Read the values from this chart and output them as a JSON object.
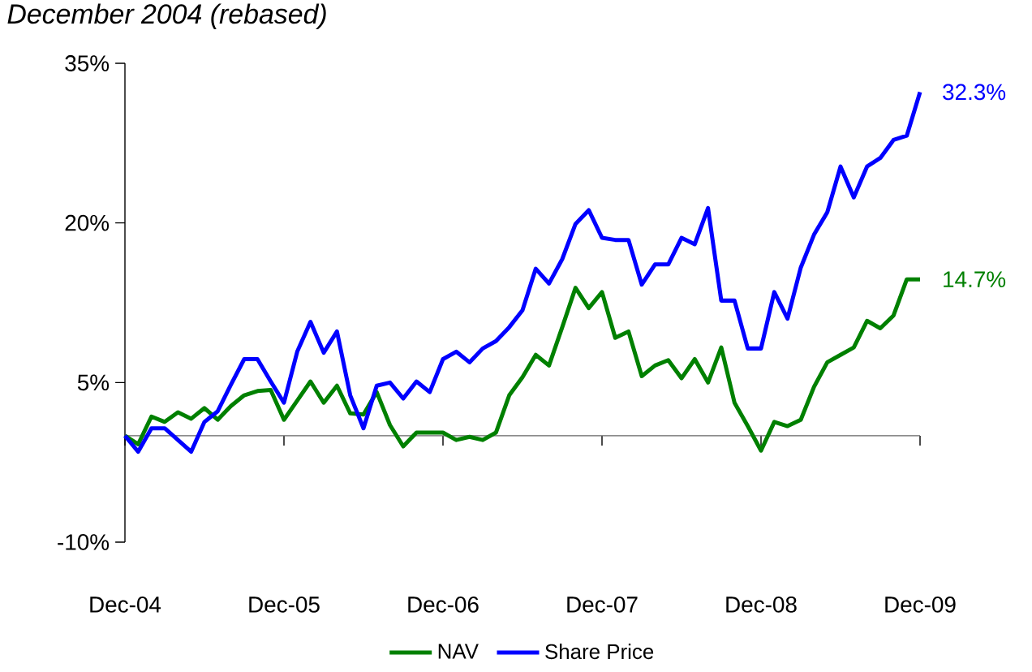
{
  "chart_data": {
    "type": "line",
    "title": "December 2004 (rebased)",
    "x": [
      "2004-12",
      "2005-01",
      "2005-02",
      "2005-03",
      "2005-04",
      "2005-05",
      "2005-06",
      "2005-07",
      "2005-08",
      "2005-09",
      "2005-10",
      "2005-11",
      "2005-12",
      "2006-01",
      "2006-02",
      "2006-03",
      "2006-04",
      "2006-05",
      "2006-06",
      "2006-07",
      "2006-08",
      "2006-09",
      "2006-10",
      "2006-11",
      "2006-12",
      "2007-01",
      "2007-02",
      "2007-03",
      "2007-04",
      "2007-05",
      "2007-06",
      "2007-07",
      "2007-08",
      "2007-09",
      "2007-10",
      "2007-11",
      "2007-12",
      "2008-01",
      "2008-02",
      "2008-03",
      "2008-04",
      "2008-05",
      "2008-06",
      "2008-07",
      "2008-08",
      "2008-09",
      "2008-10",
      "2008-11",
      "2008-12",
      "2009-01",
      "2009-02",
      "2009-03",
      "2009-04",
      "2009-05",
      "2009-06",
      "2009-07",
      "2009-08",
      "2009-09",
      "2009-10",
      "2009-11",
      "2009-12"
    ],
    "series": [
      {
        "name": "NAV",
        "color": "#008000",
        "values": [
          0,
          -0.8,
          1.8,
          1.3,
          2.2,
          1.6,
          2.6,
          1.5,
          2.8,
          3.8,
          4.2,
          4.3,
          1.5,
          3.3,
          5.1,
          3.1,
          4.7,
          2.1,
          2.0,
          4.1,
          1.0,
          -1.0,
          0.3,
          0.3,
          0.3,
          -0.4,
          -0.1,
          -0.4,
          0.3,
          3.8,
          5.5,
          7.6,
          6.6,
          10.2,
          13.9,
          12.0,
          13.5,
          9.2,
          9.8,
          5.6,
          6.6,
          7.1,
          5.4,
          7.2,
          5.0,
          8.3,
          3.1,
          0.9,
          -1.4,
          1.3,
          0.9,
          1.5,
          4.6,
          6.9,
          7.6,
          8.3,
          10.8,
          10.1,
          11.3,
          14.7,
          14.7
        ],
        "value_labels": [
          null,
          null,
          null,
          null,
          null,
          null,
          null,
          null,
          null,
          null,
          null,
          null,
          null,
          null,
          null,
          null,
          null,
          null,
          null,
          null,
          null,
          null,
          null,
          null,
          null,
          null,
          null,
          null,
          null,
          null,
          null,
          null,
          null,
          null,
          null,
          null,
          null,
          null,
          null,
          null,
          null,
          null,
          null,
          null,
          null,
          null,
          null,
          null,
          null,
          null,
          null,
          null,
          null,
          null,
          null,
          null,
          null,
          null,
          null,
          null,
          "14.7%"
        ]
      },
      {
        "name": "Share Price",
        "color": "#0000ff",
        "values": [
          0,
          -1.5,
          0.7,
          0.7,
          -0.4,
          -1.5,
          1.3,
          2.3,
          4.8,
          7.2,
          7.2,
          5.1,
          3.1,
          7.9,
          10.7,
          7.8,
          9.8,
          3.8,
          0.7,
          4.7,
          5.0,
          3.5,
          5.1,
          4.1,
          7.2,
          7.9,
          6.9,
          8.2,
          8.9,
          10.2,
          11.8,
          15.7,
          14.3,
          16.6,
          19.9,
          21.2,
          18.6,
          18.4,
          18.4,
          14.2,
          16.1,
          16.1,
          18.6,
          18.0,
          21.4,
          12.7,
          12.7,
          8.2,
          8.2,
          13.5,
          11.0,
          15.8,
          18.9,
          21.0,
          25.3,
          22.4,
          25.3,
          26.1,
          27.8,
          28.2,
          32.3
        ],
        "value_labels": [
          null,
          null,
          null,
          null,
          null,
          null,
          null,
          null,
          null,
          null,
          null,
          null,
          null,
          null,
          null,
          null,
          null,
          null,
          null,
          null,
          null,
          null,
          null,
          null,
          null,
          null,
          null,
          null,
          null,
          null,
          null,
          null,
          null,
          null,
          null,
          null,
          null,
          null,
          null,
          null,
          null,
          null,
          null,
          null,
          null,
          null,
          null,
          null,
          null,
          null,
          null,
          null,
          null,
          null,
          null,
          null,
          null,
          null,
          null,
          null,
          "32.3%"
        ]
      }
    ],
    "xlim": [
      "2004-12",
      "2009-12"
    ],
    "xticks": [
      {
        "value": "2004-12",
        "label": "Dec-04"
      },
      {
        "value": "2005-12",
        "label": "Dec-05"
      },
      {
        "value": "2006-12",
        "label": "Dec-06"
      },
      {
        "value": "2007-12",
        "label": "Dec-07"
      },
      {
        "value": "2008-12",
        "label": "Dec-08"
      },
      {
        "value": "2009-12",
        "label": "Dec-09"
      }
    ],
    "ylim": [
      -10,
      35
    ],
    "yticks": [
      {
        "value": -10,
        "label": "-10%"
      },
      {
        "value": 5,
        "label": "5%"
      },
      {
        "value": 20,
        "label": "20%"
      },
      {
        "value": 35,
        "label": "35%"
      }
    ],
    "legend": "bottom",
    "line_style": "solid",
    "marker": "none",
    "grid": false
  }
}
